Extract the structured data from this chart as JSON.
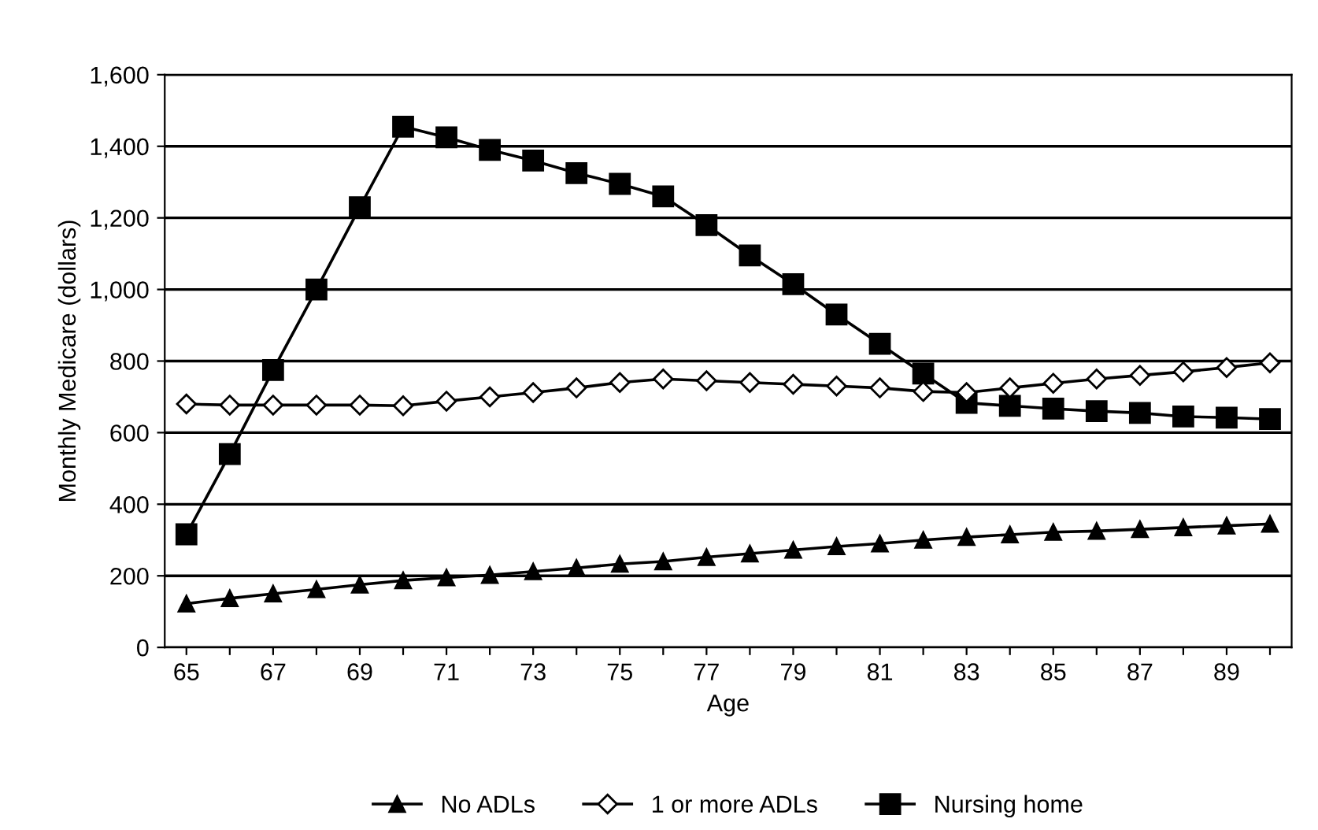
{
  "chart_data": {
    "type": "line",
    "xlabel": "Age",
    "ylabel": "Monthly Medicare (dollars)",
    "categories": [
      "65",
      null,
      "67",
      null,
      "69",
      null,
      "71",
      null,
      "73",
      null,
      "75",
      null,
      "77",
      null,
      "79",
      null,
      "81",
      null,
      "83",
      null,
      "85",
      null,
      "87",
      null,
      "89",
      null
    ],
    "series": [
      {
        "name": "No ADLs",
        "color": "#000000",
        "marker": "triangle",
        "values": [
          122,
          137,
          150,
          162,
          175,
          187,
          195,
          202,
          212,
          222,
          233,
          240,
          252,
          262,
          272,
          282,
          290,
          300,
          308,
          315,
          322,
          325,
          330,
          335,
          340,
          345
        ]
      },
      {
        "name": "1 or more ADLs",
        "color": "#000000",
        "marker": "diamond",
        "values": [
          680,
          677,
          677,
          677,
          677,
          675,
          688,
          700,
          712,
          725,
          740,
          750,
          745,
          740,
          735,
          730,
          725,
          715,
          712,
          725,
          738,
          750,
          760,
          770,
          782,
          795
        ]
      },
      {
        "name": "Nursing home",
        "color": "#000000",
        "marker": "square",
        "values": [
          316,
          540,
          775,
          1000,
          1230,
          1455,
          1425,
          1390,
          1360,
          1325,
          1295,
          1260,
          1180,
          1095,
          1015,
          930,
          848,
          765,
          683,
          675,
          667,
          660,
          655,
          645,
          642,
          638
        ]
      }
    ],
    "ylim": [
      0,
      1600
    ],
    "yticks": [
      {
        "value": 0,
        "label": "0"
      },
      {
        "value": 200,
        "label": "200"
      },
      {
        "value": 400,
        "label": "400"
      },
      {
        "value": 600,
        "label": "600"
      },
      {
        "value": 800,
        "label": "800"
      },
      {
        "value": 1000,
        "label": "1,000"
      },
      {
        "value": 1200,
        "label": "1,200"
      },
      {
        "value": 1400,
        "label": "1,400"
      },
      {
        "value": 1600,
        "label": "1,600"
      }
    ],
    "grid": "y",
    "legend": "bottom",
    "line_style": "solid"
  }
}
